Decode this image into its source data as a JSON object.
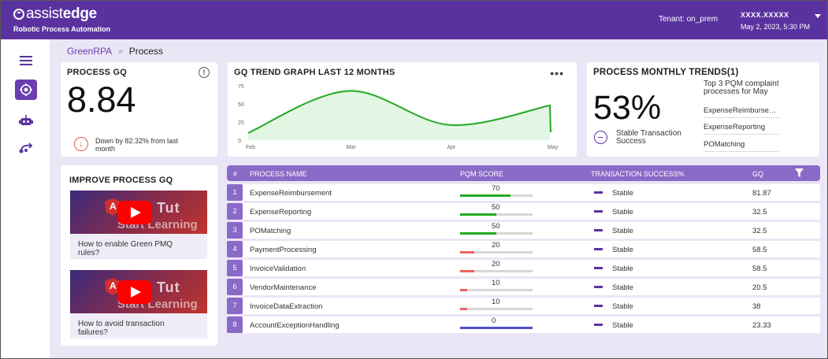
{
  "header": {
    "brand_prefix": "assist",
    "brand_bold": "edge",
    "brand_sub": "Robotic Process Automation",
    "tenant": "Tenant: on_prem",
    "user": "XXXX.XXXXX",
    "datetime": "May 2, 2023, 5:30 PM"
  },
  "sidebar": {
    "icons": [
      "menu-icon",
      "process-icon",
      "bot-icon",
      "workflow-icon"
    ]
  },
  "breadcrumb": {
    "root": "GreenRPA",
    "separator": "»",
    "current": "Process"
  },
  "process_gq": {
    "title": "PROCESS GQ",
    "value": "8.84",
    "info": "!",
    "change_text": "Down by 82.32% from last month"
  },
  "trend": {
    "title": "GQ TREND GRAPH LAST 12 MONTHS",
    "menu": "•••"
  },
  "chart_data": {
    "type": "area",
    "title": "GQ TREND GRAPH LAST 12 MONTHS",
    "x": [
      "Feb",
      "Mar",
      "Apr",
      "May"
    ],
    "y": [
      10,
      68,
      21,
      48
    ],
    "ylim": [
      0,
      75
    ],
    "yticks": [
      "75",
      "50",
      "25",
      "0"
    ],
    "color": "#22aa22",
    "grid": false,
    "legend": "none"
  },
  "monthly": {
    "title": "PROCESS MONTHLY TRENDS(1)",
    "percent": "53%",
    "status_label": "Stable Transaction Success",
    "top3_title": "Top 3 PQM complaint processes for May",
    "top3": [
      "ExpenseReimbursem...",
      "ExpenseReporting",
      "POMatching"
    ]
  },
  "improve": {
    "title": "IMPROVE PROCESS GQ",
    "videos": [
      {
        "caption": "How to enable Green PMQ rules?",
        "thumb_title": "ar Tut",
        "thumb_sub": "Start Learning"
      },
      {
        "caption": "How to avoid transaction failures?",
        "thumb_title": "ar Tut",
        "thumb_sub": "Start Learning"
      }
    ]
  },
  "table": {
    "headers": [
      "#",
      "PROCESS NAME",
      "PQM SCORE",
      "TRANSACTION SUCCESS%",
      "GQ"
    ],
    "rows": [
      {
        "num": "1",
        "name": "ExpenseReimbursement",
        "pqm": "70",
        "pqm_fraction": 0.7,
        "bar_color": "#22aa22",
        "status": "Stable",
        "gq": "81.87"
      },
      {
        "num": "2",
        "name": "ExpenseReporting",
        "pqm": "50",
        "pqm_fraction": 0.5,
        "bar_color": "#22aa22",
        "status": "Stable",
        "gq": "32.5"
      },
      {
        "num": "3",
        "name": "POMatching",
        "pqm": "50",
        "pqm_fraction": 0.5,
        "bar_color": "#22aa22",
        "status": "Stable",
        "gq": "32.5"
      },
      {
        "num": "4",
        "name": "PaymentProcessing",
        "pqm": "20",
        "pqm_fraction": 0.2,
        "bar_color": "#f06060",
        "status": "Stable",
        "gq": "58.5"
      },
      {
        "num": "5",
        "name": "InvoiceValidation",
        "pqm": "20",
        "pqm_fraction": 0.2,
        "bar_color": "#f06060",
        "status": "Stable",
        "gq": "58.5"
      },
      {
        "num": "6",
        "name": "VendorMaintenance",
        "pqm": "10",
        "pqm_fraction": 0.1,
        "bar_color": "#f06060",
        "status": "Stable",
        "gq": "20.5"
      },
      {
        "num": "7",
        "name": "InvoiceDataExtraction",
        "pqm": "10",
        "pqm_fraction": 0.1,
        "bar_color": "#f06060",
        "status": "Stable",
        "gq": "38"
      },
      {
        "num": "8",
        "name": "AccountExceptionHandling",
        "pqm": "0",
        "pqm_fraction": 1.0,
        "bar_color": "#5050c8",
        "status": "Stable",
        "gq": "23.33"
      }
    ]
  }
}
